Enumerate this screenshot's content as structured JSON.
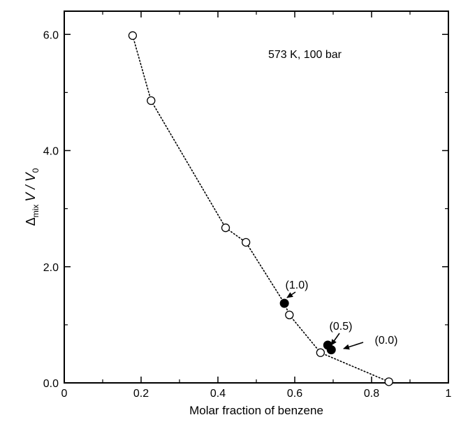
{
  "chart_data": {
    "type": "scatter",
    "title": "",
    "xlabel": "Molar fraction of benzene",
    "ylabel": {
      "delta": "Δ",
      "delta_sub": "mix",
      "main": "V / V",
      "sub": "0"
    },
    "xlim": [
      0,
      1
    ],
    "ylim": [
      0,
      6.4
    ],
    "x_ticks": [
      0,
      0.2,
      0.4,
      0.6,
      0.8,
      1
    ],
    "x_tick_labels": [
      "0",
      "0.2",
      "0.4",
      "0.6",
      "0.8",
      "1"
    ],
    "y_ticks": [
      0,
      2,
      4,
      6
    ],
    "y_tick_labels": [
      "0.0",
      "2.0",
      "4.0",
      "6.0"
    ],
    "grid": false,
    "condition_label": "573 K, 100 bar",
    "series": [
      {
        "marker": "open-circle",
        "line": "dotted",
        "x": [
          0.178,
          0.226,
          0.42,
          0.473,
          0.586,
          0.667,
          0.845
        ],
        "y": [
          5.98,
          4.86,
          2.67,
          2.42,
          1.17,
          0.52,
          0.02
        ]
      },
      {
        "marker": "filled-circle",
        "line": "none",
        "x": [
          0.573,
          0.686,
          0.695
        ],
        "y": [
          1.37,
          0.65,
          0.57
        ]
      }
    ],
    "dotted_line_connects": [
      [
        0.178,
        5.98
      ],
      [
        0.226,
        4.86
      ],
      [
        0.42,
        2.67
      ],
      [
        0.473,
        2.42
      ],
      [
        0.573,
        1.37
      ],
      [
        0.586,
        1.17
      ],
      [
        0.667,
        0.52
      ],
      [
        0.845,
        0.02
      ]
    ],
    "annotations": [
      {
        "text": "(1.0)",
        "target": [
          0.573,
          1.37
        ]
      },
      {
        "text": "(0.5)",
        "target": [
          0.686,
          0.65
        ]
      },
      {
        "text": "(0.0)",
        "target": [
          0.695,
          0.57
        ]
      }
    ]
  }
}
